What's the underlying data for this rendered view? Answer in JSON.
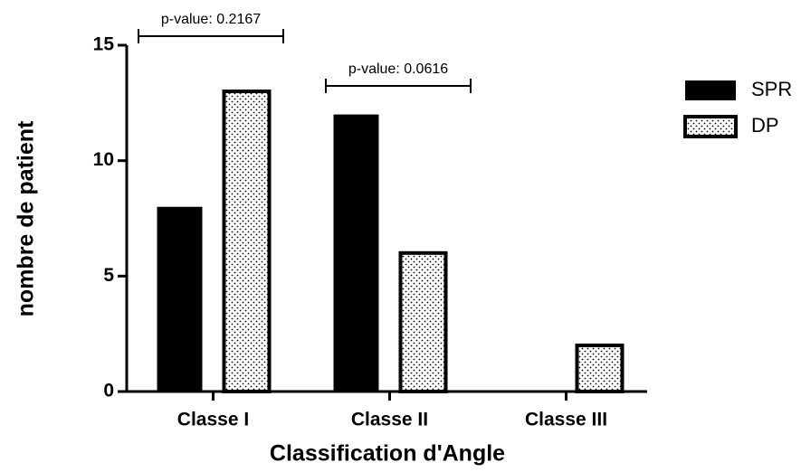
{
  "chart_data": {
    "type": "bar",
    "categories": [
      "Classe I",
      "Classe II",
      "Classe III"
    ],
    "series": [
      {
        "name": "SPR",
        "color": "#000000",
        "values": [
          8,
          12,
          0
        ]
      },
      {
        "name": "DP",
        "color": "#000000",
        "pattern": "dots",
        "values": [
          13,
          6,
          2
        ]
      }
    ],
    "ylim": [
      0,
      15
    ],
    "yticks": [
      0,
      5,
      10,
      15
    ],
    "ylabel": "nombre de patient",
    "xlabel": "Classification d'Angle",
    "annotations": [
      "p-value: 0.2167",
      "p-value: 0.0616"
    ],
    "legend": "right"
  }
}
